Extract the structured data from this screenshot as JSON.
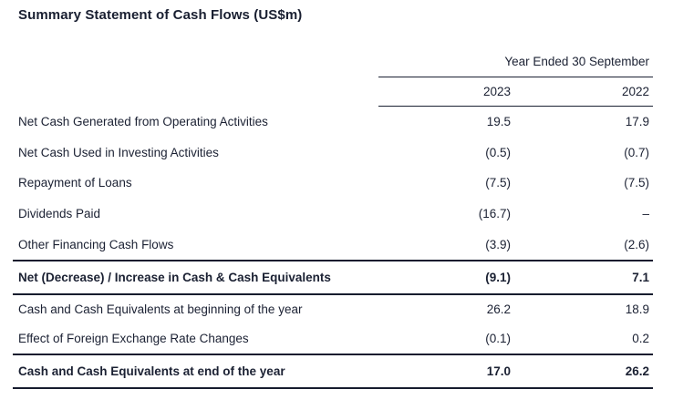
{
  "title": "Summary Statement of Cash Flows (US$m)",
  "table": {
    "period_header": "Year Ended 30 September",
    "columns": [
      "2023",
      "2022"
    ],
    "rows": [
      {
        "label": "Net Cash Generated from Operating Activities",
        "v2023": "19.5",
        "v2022": "17.9"
      },
      {
        "label": "Net Cash Used in Investing Activities",
        "v2023": "(0.5)",
        "v2022": "(0.7)"
      },
      {
        "label": "Repayment of Loans",
        "v2023": "(7.5)",
        "v2022": "(7.5)"
      },
      {
        "label": "Dividends Paid",
        "v2023": "(16.7)",
        "v2022": "–"
      },
      {
        "label": "Other Financing Cash Flows",
        "v2023": "(3.9)",
        "v2022": "(2.6)"
      },
      {
        "label": "Net (Decrease) / Increase in Cash & Cash Equivalents",
        "v2023": "(9.1)",
        "v2022": "7.1",
        "total": true
      },
      {
        "label": "Cash and Cash Equivalents at beginning of the year",
        "v2023": "26.2",
        "v2022": "18.9"
      },
      {
        "label": "Effect of Foreign Exchange Rate Changes",
        "v2023": "(0.1)",
        "v2022": "0.2"
      },
      {
        "label": "Cash and Cash Equivalents at end of the year",
        "v2023": "17.0",
        "v2022": "26.2",
        "total": true
      }
    ]
  },
  "colors": {
    "text": "#1b2133",
    "rule": "#161c2e",
    "background": "#ffffff"
  }
}
